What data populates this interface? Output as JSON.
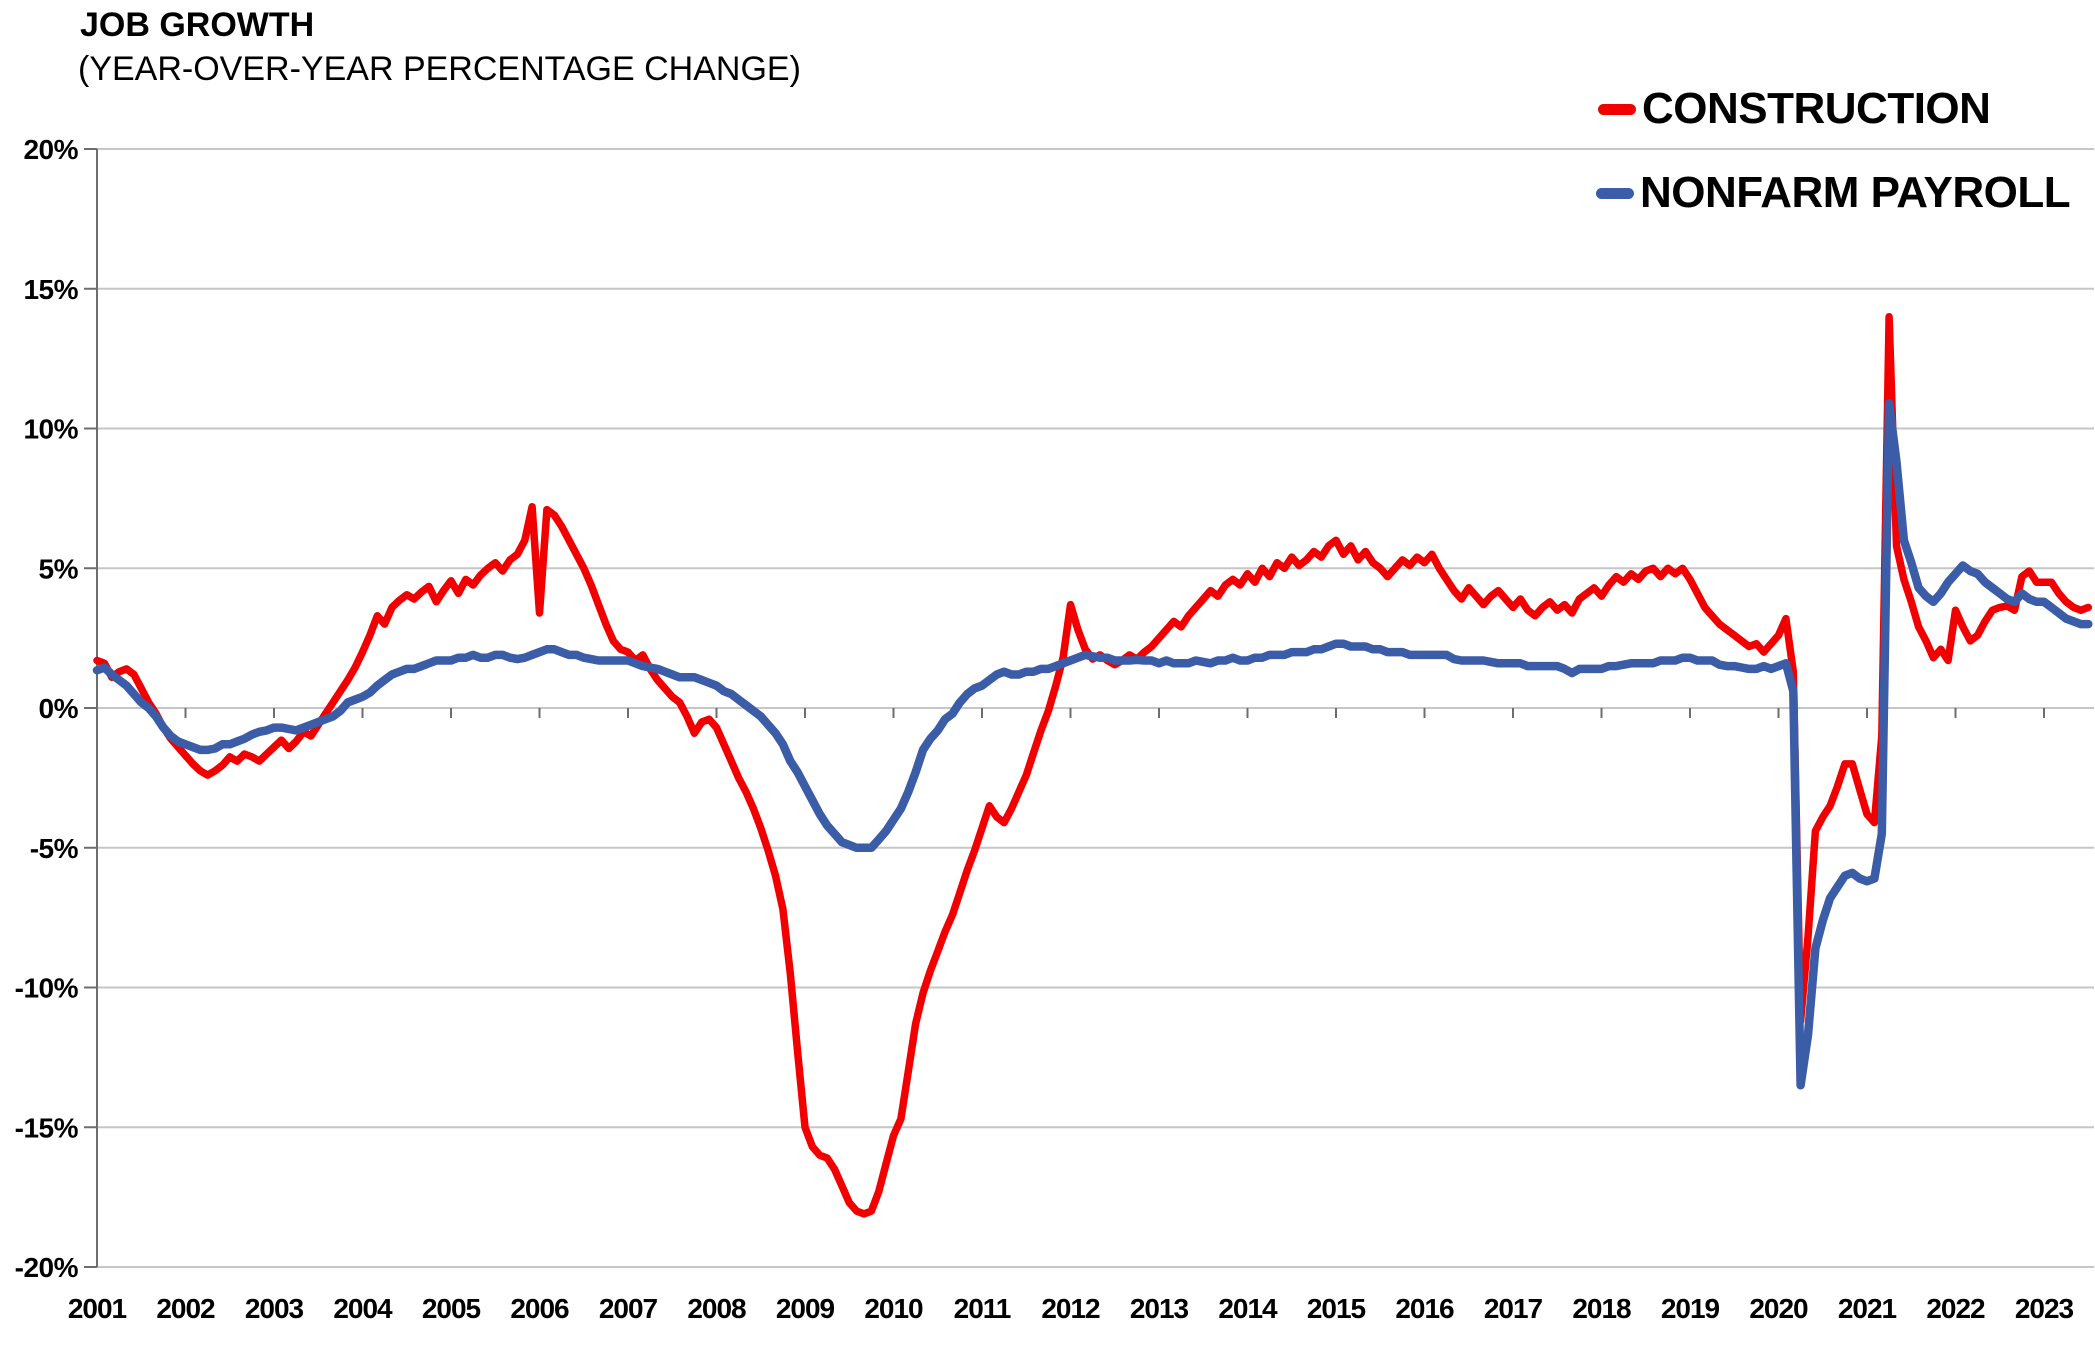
{
  "title": "JOB GROWTH",
  "subtitle": "(YEAR-OVER-YEAR PERCENTAGE CHANGE)",
  "legend": [
    {
      "label": "CONSTRUCTION",
      "color": "#F20000"
    },
    {
      "label": "NONFARM PAYROLL",
      "color": "#3B5CA6"
    }
  ],
  "colors": {
    "construction": "#F20000",
    "nonfarm_payroll": "#3B5CA6",
    "gridline": "#C6C6C6",
    "axis": "#6E6E6E",
    "text": "#000000"
  },
  "chart_data": {
    "type": "line",
    "title": "JOB GROWTH",
    "subtitle": "(YEAR-OVER-YEAR PERCENTAGE CHANGE)",
    "xlabel": "",
    "ylabel": "",
    "ylim": [
      -20,
      20
    ],
    "y_tick_step_pct": 5,
    "grid": "horizontal",
    "legend_position": "top-right",
    "frequency": "monthly",
    "x_start": "2001-01",
    "x_end": "2023-07",
    "x_tick_labels": [
      "2001",
      "2002",
      "2003",
      "2004",
      "2005",
      "2006",
      "2007",
      "2008",
      "2009",
      "2010",
      "2011",
      "2012",
      "2013",
      "2014",
      "2015",
      "2016",
      "2017",
      "2018",
      "2019",
      "2020",
      "2021",
      "2022",
      "2023"
    ],
    "y_tick_labels": [
      "20%",
      "15%",
      "10%",
      "5%",
      "0%",
      "-5%",
      "-10%",
      "-15%",
      "-20%"
    ],
    "series": [
      {
        "name": "CONSTRUCTION",
        "color": "#F20000",
        "values": [
          1.7,
          1.6,
          1.1,
          1.3,
          1.4,
          1.2,
          0.7,
          0.2,
          -0.2,
          -0.7,
          -1.1,
          -1.4,
          -1.7,
          -2.0,
          -2.25,
          -2.4,
          -2.25,
          -2.05,
          -1.75,
          -1.9,
          -1.65,
          -1.75,
          -1.9,
          -1.65,
          -1.4,
          -1.15,
          -1.45,
          -1.2,
          -0.85,
          -1.0,
          -0.6,
          -0.2,
          0.2,
          0.6,
          1.0,
          1.45,
          2.0,
          2.6,
          3.3,
          3.0,
          3.6,
          3.85,
          4.05,
          3.9,
          4.15,
          4.35,
          3.8,
          4.2,
          4.55,
          4.1,
          4.6,
          4.4,
          4.75,
          5.0,
          5.2,
          4.9,
          5.3,
          5.5,
          6.0,
          7.2,
          3.4,
          7.1,
          6.9,
          6.5,
          6.0,
          5.5,
          5.0,
          4.4,
          3.7,
          3.0,
          2.4,
          2.1,
          2.0,
          1.7,
          1.9,
          1.4,
          1.0,
          0.7,
          0.4,
          0.2,
          -0.3,
          -0.9,
          -0.5,
          -0.4,
          -0.7,
          -1.3,
          -1.9,
          -2.5,
          -3.0,
          -3.6,
          -4.3,
          -5.1,
          -6.0,
          -7.2,
          -9.5,
          -12.3,
          -15.0,
          -15.7,
          -16.0,
          -16.1,
          -16.5,
          -17.1,
          -17.7,
          -18.0,
          -18.1,
          -18.0,
          -17.3,
          -16.3,
          -15.3,
          -14.7,
          -13.0,
          -11.3,
          -10.2,
          -9.4,
          -8.7,
          -8.0,
          -7.4,
          -6.6,
          -5.8,
          -5.1,
          -4.3,
          -3.5,
          -3.9,
          -4.1,
          -3.6,
          -3.0,
          -2.4,
          -1.6,
          -0.8,
          -0.1,
          0.8,
          1.8,
          3.7,
          2.8,
          2.1,
          1.75,
          1.9,
          1.7,
          1.55,
          1.7,
          1.9,
          1.75,
          2.0,
          2.2,
          2.5,
          2.8,
          3.1,
          2.9,
          3.3,
          3.6,
          3.9,
          4.2,
          4.0,
          4.4,
          4.6,
          4.4,
          4.8,
          4.5,
          5.0,
          4.7,
          5.2,
          5.0,
          5.4,
          5.1,
          5.3,
          5.6,
          5.4,
          5.8,
          6.0,
          5.5,
          5.8,
          5.3,
          5.6,
          5.2,
          5.0,
          4.7,
          5.0,
          5.3,
          5.1,
          5.4,
          5.2,
          5.5,
          5.0,
          4.6,
          4.2,
          3.9,
          4.3,
          4.0,
          3.7,
          4.0,
          4.2,
          3.9,
          3.6,
          3.9,
          3.5,
          3.3,
          3.6,
          3.8,
          3.5,
          3.7,
          3.4,
          3.9,
          4.1,
          4.3,
          4.0,
          4.4,
          4.7,
          4.5,
          4.8,
          4.6,
          4.9,
          5.0,
          4.7,
          5.0,
          4.8,
          5.0,
          4.6,
          4.1,
          3.6,
          3.3,
          3.0,
          2.8,
          2.6,
          2.4,
          2.2,
          2.3,
          2.0,
          2.3,
          2.6,
          3.2,
          1.3,
          -11.2,
          -8.2,
          -4.4,
          -3.9,
          -3.5,
          -2.8,
          -2.0,
          -2.0,
          -2.9,
          -3.8,
          -4.1,
          -1.0,
          14.0,
          5.8,
          4.6,
          3.8,
          2.9,
          2.4,
          1.8,
          2.1,
          1.7,
          3.5,
          2.9,
          2.4,
          2.6,
          3.1,
          3.5,
          3.6,
          3.65,
          3.5,
          4.7,
          4.9,
          4.5,
          4.5,
          4.5,
          4.1,
          3.8,
          3.6,
          3.5,
          3.6
        ]
      },
      {
        "name": "NONFARM PAYROLL",
        "color": "#3B5CA6",
        "values": [
          1.35,
          1.45,
          1.2,
          1.0,
          0.8,
          0.5,
          0.2,
          0.0,
          -0.3,
          -0.7,
          -1.0,
          -1.2,
          -1.3,
          -1.4,
          -1.5,
          -1.5,
          -1.45,
          -1.3,
          -1.3,
          -1.2,
          -1.1,
          -0.95,
          -0.85,
          -0.8,
          -0.7,
          -0.7,
          -0.75,
          -0.8,
          -0.7,
          -0.6,
          -0.5,
          -0.4,
          -0.3,
          -0.1,
          0.2,
          0.3,
          0.4,
          0.55,
          0.8,
          1.0,
          1.2,
          1.3,
          1.4,
          1.4,
          1.5,
          1.6,
          1.7,
          1.7,
          1.7,
          1.8,
          1.8,
          1.9,
          1.8,
          1.8,
          1.9,
          1.9,
          1.8,
          1.75,
          1.8,
          1.9,
          2.0,
          2.1,
          2.1,
          2.0,
          1.9,
          1.9,
          1.8,
          1.75,
          1.7,
          1.7,
          1.7,
          1.7,
          1.7,
          1.6,
          1.5,
          1.45,
          1.4,
          1.3,
          1.2,
          1.1,
          1.1,
          1.1,
          1.0,
          0.9,
          0.8,
          0.6,
          0.5,
          0.3,
          0.1,
          -0.1,
          -0.3,
          -0.6,
          -0.9,
          -1.3,
          -1.9,
          -2.3,
          -2.8,
          -3.3,
          -3.8,
          -4.2,
          -4.5,
          -4.8,
          -4.9,
          -5.0,
          -5.0,
          -5.0,
          -4.7,
          -4.4,
          -4.0,
          -3.6,
          -3.0,
          -2.3,
          -1.5,
          -1.1,
          -0.8,
          -0.4,
          -0.2,
          0.2,
          0.5,
          0.7,
          0.8,
          1.0,
          1.2,
          1.3,
          1.2,
          1.2,
          1.3,
          1.3,
          1.4,
          1.4,
          1.5,
          1.6,
          1.7,
          1.8,
          1.9,
          1.85,
          1.8,
          1.8,
          1.7,
          1.7,
          1.7,
          1.72,
          1.7,
          1.7,
          1.6,
          1.7,
          1.6,
          1.6,
          1.6,
          1.7,
          1.65,
          1.6,
          1.7,
          1.7,
          1.8,
          1.7,
          1.7,
          1.8,
          1.8,
          1.9,
          1.9,
          1.9,
          2.0,
          2.0,
          2.0,
          2.1,
          2.1,
          2.2,
          2.3,
          2.3,
          2.2,
          2.2,
          2.2,
          2.1,
          2.1,
          2.0,
          2.0,
          2.0,
          1.9,
          1.9,
          1.9,
          1.9,
          1.9,
          1.9,
          1.75,
          1.7,
          1.7,
          1.7,
          1.7,
          1.65,
          1.6,
          1.6,
          1.6,
          1.6,
          1.5,
          1.5,
          1.5,
          1.5,
          1.5,
          1.4,
          1.25,
          1.4,
          1.4,
          1.4,
          1.4,
          1.5,
          1.5,
          1.55,
          1.6,
          1.6,
          1.6,
          1.6,
          1.7,
          1.7,
          1.7,
          1.8,
          1.8,
          1.7,
          1.7,
          1.7,
          1.55,
          1.5,
          1.5,
          1.45,
          1.4,
          1.4,
          1.5,
          1.4,
          1.5,
          1.6,
          0.6,
          -13.5,
          -11.7,
          -8.6,
          -7.6,
          -6.8,
          -6.4,
          -6.0,
          -5.9,
          -6.1,
          -6.2,
          -6.1,
          -4.5,
          10.9,
          8.8,
          6.0,
          5.2,
          4.3,
          4.0,
          3.8,
          4.1,
          4.5,
          4.8,
          5.1,
          4.9,
          4.8,
          4.5,
          4.3,
          4.1,
          3.9,
          3.8,
          4.1,
          3.9,
          3.8,
          3.8,
          3.6,
          3.4,
          3.2,
          3.1,
          3.0,
          3.0
        ]
      }
    ]
  }
}
